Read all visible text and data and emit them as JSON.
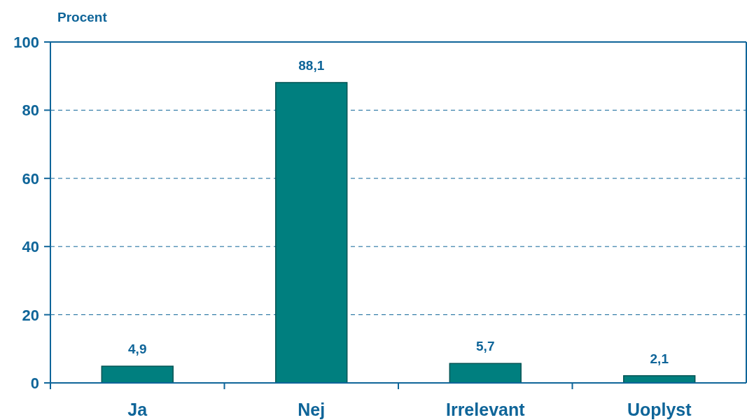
{
  "chart_data": {
    "type": "bar",
    "ylabel": "Procent",
    "categories": [
      "Ja",
      "Nej",
      "Irrelevant",
      "Uoplyst"
    ],
    "values": [
      4.9,
      88.1,
      5.7,
      2.1
    ],
    "color": "#007f7f",
    "value_labels": [
      "4,9",
      "88,1",
      "5,7",
      "2,1"
    ],
    "ylim": [
      0,
      100
    ],
    "yticks": [
      0,
      20,
      40,
      60,
      80,
      100
    ],
    "grid": "y"
  }
}
